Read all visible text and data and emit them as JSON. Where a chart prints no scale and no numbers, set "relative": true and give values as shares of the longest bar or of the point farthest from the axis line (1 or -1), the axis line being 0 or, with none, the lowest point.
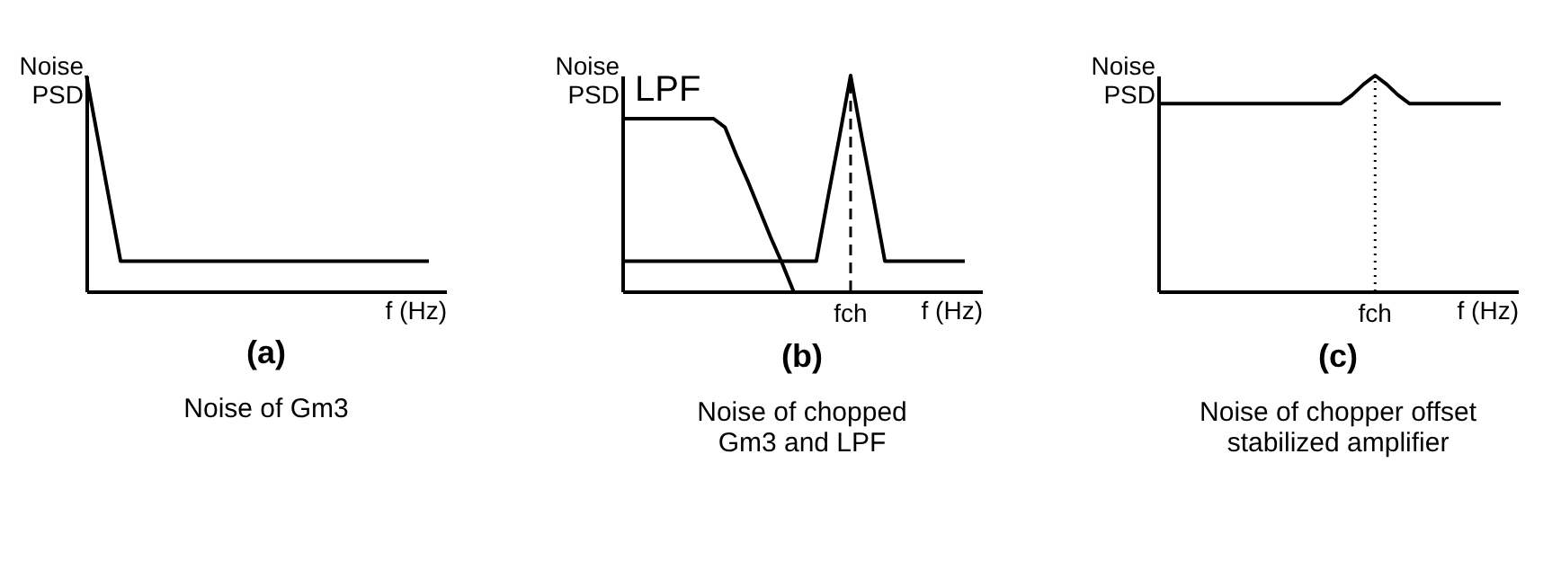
{
  "chart_data": [
    {
      "type": "line",
      "relative": true,
      "title": "(a)",
      "subtitle": "Noise of Gm3",
      "xlabel": "f (Hz)",
      "ylabel": "Noise PSD",
      "line_style": "solid",
      "marker": "none",
      "categories": [
        null,
        null,
        null,
        null,
        null,
        null,
        null,
        null,
        null,
        null,
        null
      ],
      "series": [
        {
          "color": "#000000",
          "values": [
            1,
            0.14,
            0.14,
            0.14,
            0.14,
            0.14,
            0.14,
            0.14,
            0.14,
            0.14,
            0.14
          ]
        }
      ]
    },
    {
      "type": "line",
      "relative": true,
      "title": "(b)",
      "subtitle": "Noise of chopped\nGm3 and LPF",
      "xlabel": "f (Hz)",
      "ylabel": "Noise PSD",
      "line_style": "solid",
      "marker": "none",
      "categories": [
        null,
        null,
        null,
        null,
        null,
        null,
        null,
        null,
        null,
        null,
        null,
        null,
        null,
        null,
        null,
        null,
        null,
        null,
        null,
        null,
        null,
        null,
        null,
        null,
        null,
        null,
        null,
        null,
        null,
        null,
        null
      ],
      "series": [
        {
          "name": "LPF",
          "color": "#000000",
          "values": [
            0.8,
            0.8,
            0.8,
            0.8,
            0.8,
            0.8,
            0.8,
            0.8,
            0.8,
            0.76,
            0.63,
            0.51,
            0.38,
            0.25,
            0.13,
            0,
            null,
            null,
            null,
            null,
            null,
            null,
            null,
            null,
            null,
            null,
            null,
            null,
            null,
            null,
            null
          ]
        },
        {
          "color": "#000000",
          "values": [
            0.14,
            0.14,
            0.14,
            0.14,
            0.14,
            0.14,
            0.14,
            0.14,
            0.14,
            0.14,
            0.14,
            0.14,
            0.14,
            0.14,
            0.14,
            0.14,
            0.14,
            0.14,
            0.43,
            0.71,
            1,
            0.71,
            0.43,
            0.14,
            0.14,
            0.14,
            0.14,
            0.14,
            0.14,
            0.14,
            0.14
          ]
        }
      ],
      "annotations": [
        "fch"
      ]
    },
    {
      "type": "line",
      "relative": true,
      "title": "(c)",
      "subtitle": "Noise of chopper offset\nstabilized amplifier",
      "xlabel": "f (Hz)",
      "ylabel": "Noise PSD",
      "line_style": "solid",
      "marker": "none",
      "categories": [
        null,
        null,
        null,
        null,
        null,
        null,
        null,
        null,
        null,
        null,
        null,
        null,
        null,
        null,
        null,
        null,
        null,
        null,
        null,
        null,
        null,
        null,
        null,
        null,
        null,
        null,
        null,
        null,
        null,
        null,
        null
      ],
      "series": [
        {
          "color": "#000000",
          "values": [
            0.87,
            0.87,
            0.87,
            0.87,
            0.87,
            0.87,
            0.87,
            0.87,
            0.87,
            0.87,
            0.87,
            0.87,
            0.87,
            0.87,
            0.87,
            0.87,
            0.87,
            0.91,
            0.96,
            1,
            0.96,
            0.91,
            0.87,
            0.87,
            0.87,
            0.87,
            0.87,
            0.87,
            0.87,
            0.87,
            0.87
          ]
        }
      ],
      "annotations": [
        "fch"
      ]
    }
  ]
}
